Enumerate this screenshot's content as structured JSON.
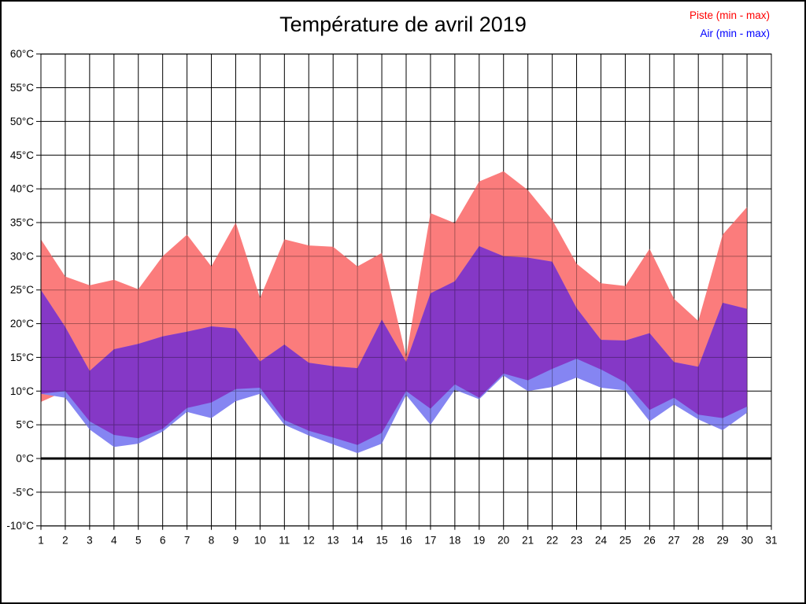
{
  "page_title": "Température de avril 2019",
  "legend": {
    "items": [
      {
        "label": "Piste (min - max)",
        "color": "#ff0000"
      },
      {
        "label": "Air (min - max)",
        "color": "#0000ff"
      }
    ]
  },
  "chart_data": {
    "type": "area",
    "title": "Température de avril 2019",
    "x": [
      1,
      2,
      3,
      4,
      5,
      6,
      7,
      8,
      9,
      10,
      11,
      12,
      13,
      14,
      15,
      16,
      17,
      18,
      19,
      20,
      21,
      22,
      23,
      24,
      25,
      26,
      27,
      28,
      29,
      30
    ],
    "series": [
      {
        "name": "Piste max",
        "values": [
          32.5,
          27,
          25.7,
          26.5,
          25.1,
          30,
          33.2,
          28.5,
          35,
          23.8,
          32.5,
          31.6,
          31.4,
          28.5,
          30.5,
          15.1,
          36.4,
          34.9,
          41.1,
          42.6,
          39.8,
          35.4,
          28.9,
          26,
          25.6,
          31.1,
          23.7,
          20.4,
          33.2,
          37.3
        ]
      },
      {
        "name": "Piste min",
        "values": [
          8.4,
          10,
          5.5,
          3.5,
          3,
          4.4,
          7.5,
          8.3,
          10.3,
          10.5,
          5.7,
          4.1,
          3.1,
          2,
          3.8,
          10,
          7.4,
          11,
          9,
          12.6,
          11.6,
          13.3,
          14.8,
          13.2,
          11.3,
          7.2,
          9,
          6.5,
          6,
          7.7
        ]
      },
      {
        "name": "Air max",
        "values": [
          25,
          19.5,
          13,
          16.2,
          17,
          18.1,
          18.8,
          19.6,
          19.3,
          14.4,
          16.9,
          14.2,
          13.7,
          13.4,
          20.6,
          14.3,
          24.5,
          26.3,
          31.5,
          30,
          29.8,
          29.2,
          22.3,
          17.6,
          17.5,
          18.6,
          14.3,
          13.6,
          23.1,
          22.2
        ]
      },
      {
        "name": "Air min",
        "values": [
          9.6,
          9,
          4.3,
          1.7,
          2.2,
          4,
          6.9,
          6,
          8.5,
          9.6,
          5,
          3.4,
          2.1,
          0.8,
          2.2,
          9.4,
          5,
          10.2,
          8.8,
          12.3,
          10,
          10.6,
          12,
          10.5,
          10.1,
          5.5,
          8,
          5.8,
          4.2,
          6.8
        ]
      }
    ],
    "x_axis": {
      "min": 1,
      "max": 31,
      "step": 1
    },
    "y_axis": {
      "min": -10,
      "max": 60,
      "step": 5,
      "unit": "°C",
      "bold_line_at": 0
    },
    "grid": true,
    "legend_position": "top-right",
    "colors": {
      "piste_fill": "#fb7c7c",
      "air_fill": "#8585f2",
      "overlap_fill": "#8538c6",
      "grid": "#000000",
      "axis_text": "#000000"
    }
  }
}
